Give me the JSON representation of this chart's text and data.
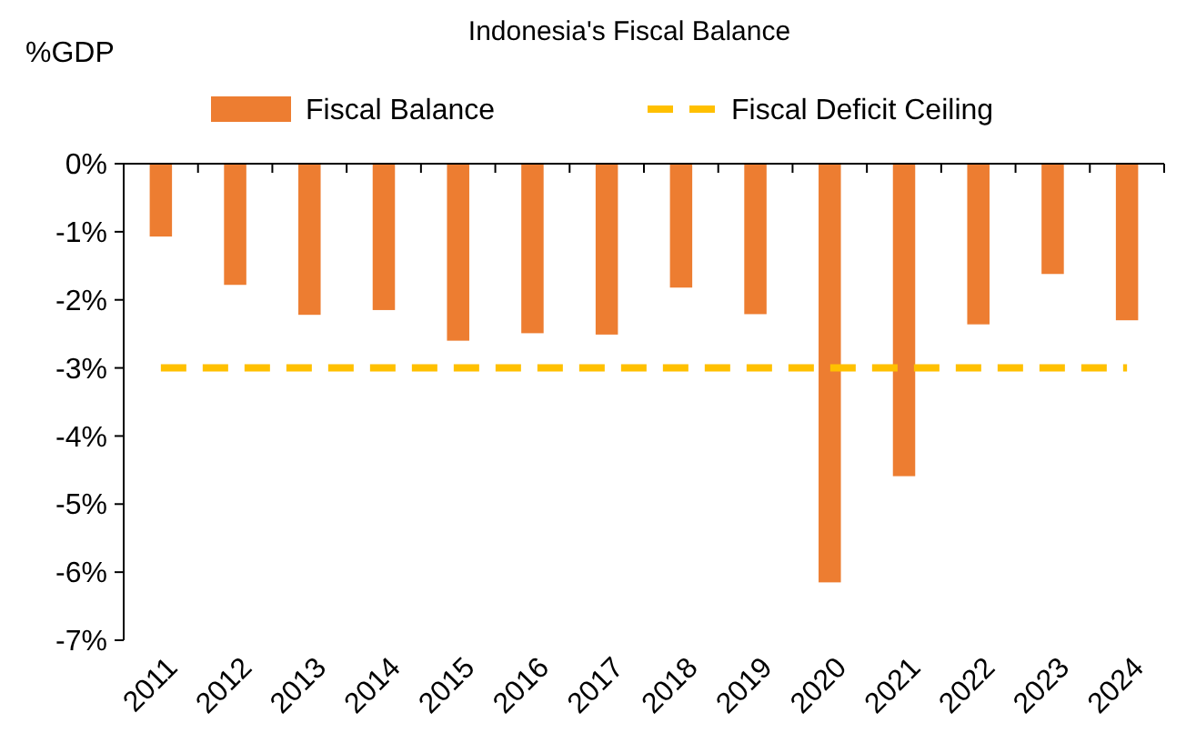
{
  "chart_data": {
    "type": "bar",
    "title": "Indonesia's Fiscal Balance",
    "ylabel": "%GDP",
    "categories": [
      "2011",
      "2012",
      "2013",
      "2014",
      "2015",
      "2016",
      "2017",
      "2018",
      "2019",
      "2020",
      "2021",
      "2022",
      "2023",
      "2024"
    ],
    "series": [
      {
        "name": "Fiscal Balance",
        "color": "#ed7d31",
        "values": [
          -1.07,
          -1.78,
          -2.22,
          -2.15,
          -2.6,
          -2.49,
          -2.51,
          -1.82,
          -2.21,
          -6.15,
          -4.59,
          -2.36,
          -1.62,
          -2.3
        ]
      },
      {
        "name": "Fiscal Deficit Ceiling",
        "type": "line",
        "color": "#ffc000",
        "line_style": "dashed",
        "marker": "none",
        "values": [
          -3,
          -3,
          -3,
          -3,
          -3,
          -3,
          -3,
          -3,
          -3,
          -3,
          -3,
          -3,
          -3,
          -3
        ]
      }
    ],
    "ylim": [
      -7,
      0
    ],
    "yticks": [
      {
        "value": -7,
        "label": "-7%"
      },
      {
        "value": -6,
        "label": "-6%"
      },
      {
        "value": -5,
        "label": "-5%"
      },
      {
        "value": -4,
        "label": "-4%"
      },
      {
        "value": -3,
        "label": "-3%"
      },
      {
        "value": -2,
        "label": "-2%"
      },
      {
        "value": -1,
        "label": "-1%"
      },
      {
        "value": 0,
        "label": "0%"
      }
    ],
    "grid": false,
    "legend": "top"
  }
}
